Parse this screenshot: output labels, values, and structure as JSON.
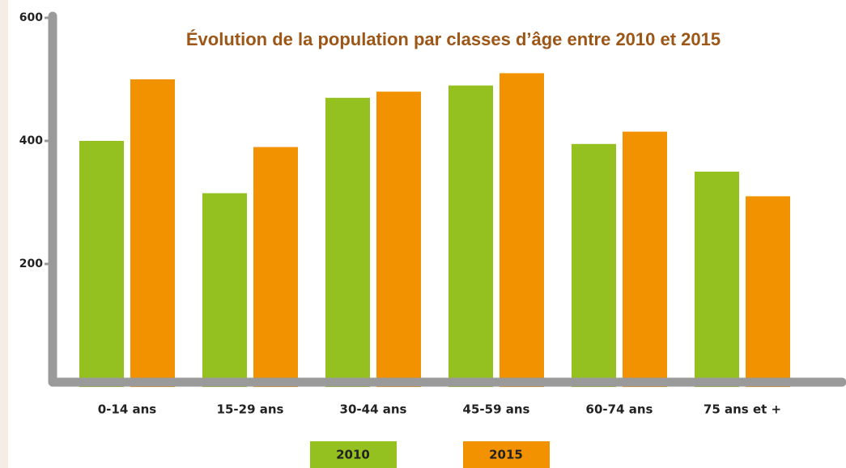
{
  "chart_data": {
    "type": "bar",
    "title": "Évolution de la population par classes d’âge entre 2010 et 2015",
    "categories": [
      "0-14 ans",
      "15-29 ans",
      "30-44 ans",
      "45-59 ans",
      "60-74 ans",
      "75 ans et +"
    ],
    "series": [
      {
        "name": "2010",
        "color": "#95c120",
        "values": [
          400,
          315,
          470,
          490,
          395,
          350
        ]
      },
      {
        "name": "2015",
        "color": "#f39200",
        "values": [
          500,
          390,
          480,
          510,
          415,
          310
        ]
      }
    ],
    "ylim": [
      0,
      600
    ],
    "yticks": [
      200,
      400,
      600
    ]
  }
}
